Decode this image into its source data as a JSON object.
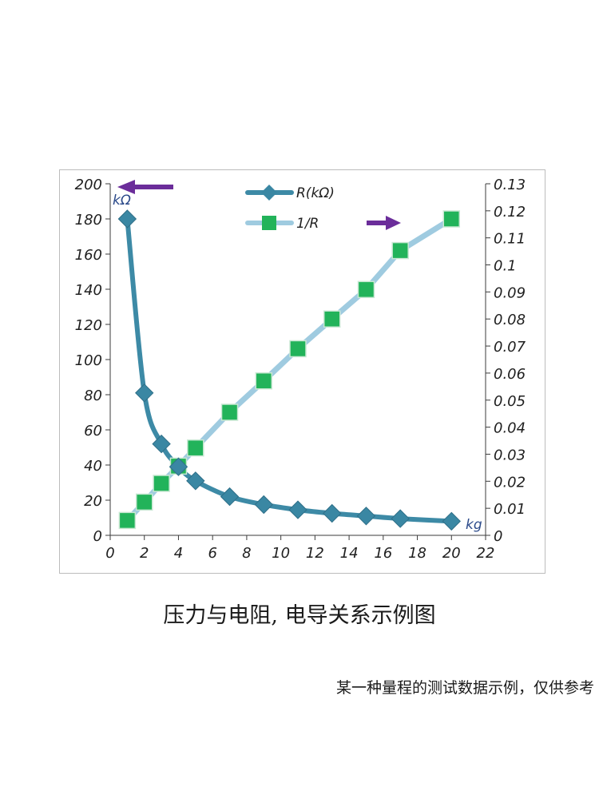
{
  "chart_data": {
    "type": "line",
    "title": "",
    "x": [
      1,
      2,
      3,
      4,
      5,
      7,
      9,
      11,
      13,
      15,
      17,
      20
    ],
    "xlabel": "kg",
    "ylabel": "kΩ",
    "xlim": [
      0,
      22
    ],
    "xticks": [
      0,
      2,
      4,
      6,
      8,
      10,
      12,
      14,
      16,
      18,
      20,
      22
    ],
    "ylim": [
      0,
      200
    ],
    "yticks": [
      0,
      20,
      40,
      60,
      80,
      100,
      120,
      140,
      160,
      180,
      200
    ],
    "y2lim": [
      0,
      0.13
    ],
    "y2ticks": [
      0,
      0.01,
      0.02,
      0.03,
      0.04,
      0.05,
      0.06,
      0.07,
      0.08,
      0.09,
      0.1,
      0.11,
      0.12,
      0.13
    ],
    "legend_position": "top-center",
    "series": [
      {
        "name": "R(kΩ)",
        "axis": "left",
        "marker": "diamond",
        "color": "#3d8aa6",
        "values": [
          180,
          81,
          52,
          39,
          31,
          22,
          17.5,
          14.5,
          12.5,
          11,
          9.5,
          8
        ]
      },
      {
        "name": "1/R",
        "axis": "right",
        "marker": "square",
        "color": "#9fcbe0",
        "marker_color": "#22b35a",
        "values": [
          0.0055,
          0.0123,
          0.0192,
          0.0256,
          0.0323,
          0.0455,
          0.0571,
          0.069,
          0.08,
          0.0909,
          0.1053,
          0.117
        ]
      }
    ],
    "annotations": [
      "left arrow points to left axis (kΩ)",
      "right arrow points to right axis"
    ]
  },
  "caption": "压力与电阻, 电导关系示例图",
  "note": "某一种量程的测试数据示例，仅供参考",
  "colors": {
    "arrow": "#6b2d9a",
    "r_line": "#3d8aa6",
    "r_marker": "#3a87a3",
    "g_line": "#9fcbe0",
    "g_marker": "#22b35a",
    "unit": "#2b4a8a"
  }
}
